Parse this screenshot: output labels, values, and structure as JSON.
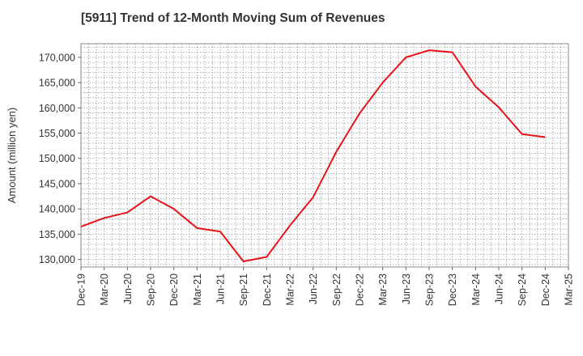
{
  "title": "[5911]  Trend of 12-Month Moving Sum of Revenues",
  "chart_data": {
    "type": "line",
    "ylabel": "Amount (million yen)",
    "xlabel": "",
    "ylim": [
      128500,
      172700
    ],
    "yticks": [
      130000,
      135000,
      140000,
      145000,
      150000,
      155000,
      160000,
      165000,
      170000
    ],
    "ytick_labels": [
      "130,000",
      "135,000",
      "140,000",
      "145,000",
      "150,000",
      "155,000",
      "160,000",
      "165,000",
      "170,000"
    ],
    "x_ticks": [
      "Dec-19",
      "Mar-20",
      "Jun-20",
      "Sep-20",
      "Dec-20",
      "Mar-21",
      "Jun-21",
      "Sep-21",
      "Dec-21",
      "Mar-22",
      "Jun-22",
      "Sep-22",
      "Dec-22",
      "Mar-23",
      "Jun-23",
      "Sep-23",
      "Dec-23",
      "Mar-24",
      "Jun-24",
      "Sep-24",
      "Dec-24",
      "Mar-25"
    ],
    "grid": true,
    "line_color": "#e8141a",
    "series": [
      {
        "x": [
          "Dec-19",
          "Mar-20",
          "Jun-20",
          "Sep-20",
          "Dec-20",
          "Mar-21",
          "Jun-21",
          "Sep-21",
          "Dec-21",
          "Mar-22",
          "Jun-22",
          "Sep-22",
          "Dec-22",
          "Mar-23",
          "Jun-23",
          "Sep-23",
          "Dec-23",
          "Mar-24",
          "Jun-24",
          "Sep-24",
          "Dec-24"
        ],
        "values": [
          136500,
          138200,
          139300,
          142500,
          140000,
          136200,
          135500,
          129600,
          130500,
          136700,
          142300,
          151300,
          158900,
          165000,
          170000,
          171400,
          171000,
          164200,
          160100,
          154800,
          154200
        ]
      }
    ]
  }
}
